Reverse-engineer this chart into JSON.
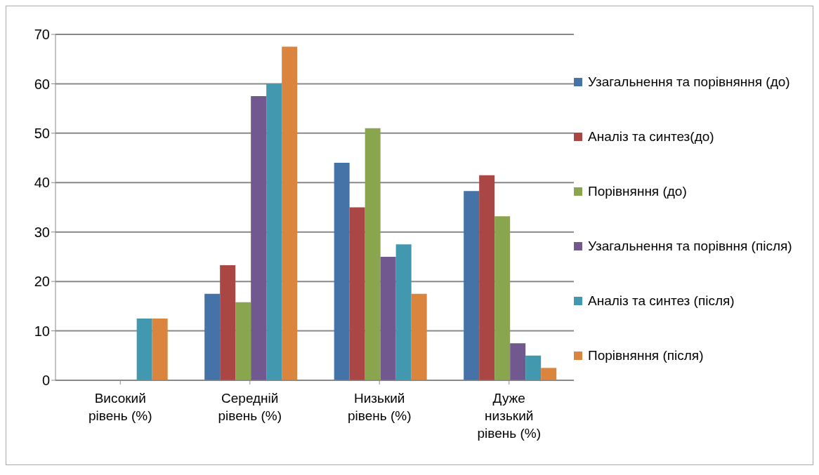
{
  "chart_data": {
    "type": "bar",
    "categories": [
      "Високий рівень (%)",
      "Середній рівень (%)",
      "Низький рівень (%)",
      "Дуже низький рівень (%)"
    ],
    "series": [
      {
        "name": "Узагальнення та порівняння (до)",
        "color": "#4572a7",
        "values": [
          0,
          17.5,
          44,
          38.3
        ]
      },
      {
        "name": "Аналіз та синтез(до)",
        "color": "#aa4643",
        "values": [
          0,
          23.3,
          35,
          41.5
        ]
      },
      {
        "name": "Порівняння (до)",
        "color": "#89a54e",
        "values": [
          0,
          15.8,
          51,
          33.2
        ]
      },
      {
        "name": "Узагальнення та порівння (після)",
        "color": "#71588f",
        "values": [
          0,
          57.5,
          25,
          7.5
        ]
      },
      {
        "name": "Аналіз та синтез (після)",
        "color": "#4198af",
        "values": [
          12.5,
          60,
          27.5,
          5
        ]
      },
      {
        "name": "Порівняння (після)",
        "color": "#db843d",
        "values": [
          12.5,
          67.5,
          17.5,
          2.5
        ]
      }
    ],
    "ylim": [
      0,
      70
    ],
    "yticks": [
      0,
      10,
      20,
      30,
      40,
      50,
      60,
      70
    ],
    "grid": "y",
    "legend": "right"
  }
}
